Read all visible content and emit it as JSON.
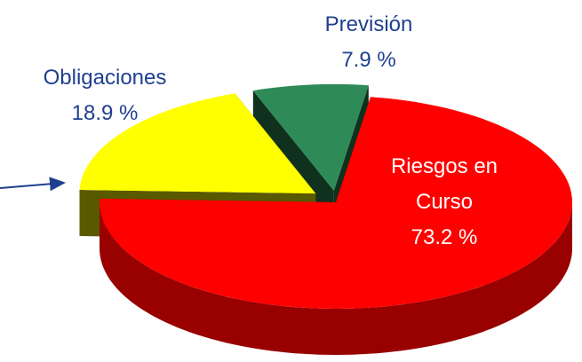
{
  "chart_data": {
    "type": "pie",
    "categories": [
      "Previsión",
      "Riesgos en Curso",
      "Obligaciones"
    ],
    "values": [
      7.9,
      73.2,
      18.9
    ],
    "value_labels": [
      "7.9 %",
      "73.2 %",
      "18.9 %"
    ],
    "colors": [
      "#2e8b57",
      "#ff0000",
      "#ffff00"
    ],
    "label_colors": [
      "#1f3f8f",
      "#ffffff",
      "#1f3f8f"
    ]
  }
}
